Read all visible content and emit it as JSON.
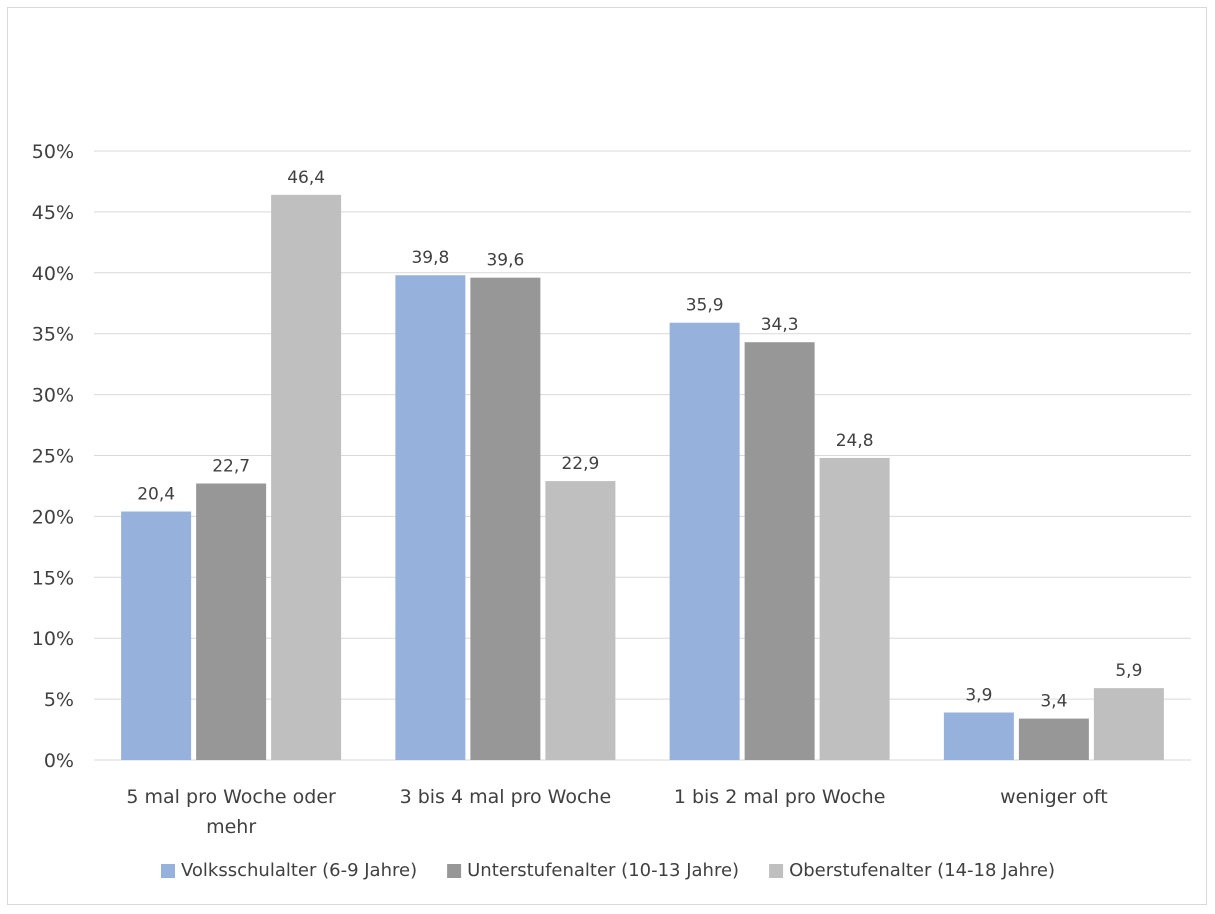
{
  "chart_data": {
    "type": "bar",
    "categories": [
      [
        "5 mal pro Woche oder",
        "mehr"
      ],
      [
        "3 bis 4 mal pro Woche"
      ],
      [
        "1 bis 2 mal pro Woche"
      ],
      [
        "weniger oft"
      ]
    ],
    "series": [
      {
        "name": "Volksschulalter (6-9 Jahre)",
        "color": "#95b1dc",
        "values": [
          20.4,
          39.8,
          35.9,
          3.9
        ],
        "labels": [
          "20,4",
          "39,8",
          "35,9",
          "3,9"
        ]
      },
      {
        "name": "Unterstufenalter (10-13 Jahre)",
        "color": "#979797",
        "values": [
          22.7,
          39.6,
          34.3,
          3.4
        ],
        "labels": [
          "22,7",
          "39,6",
          "34,3",
          "3,4"
        ]
      },
      {
        "name": "Oberstufenalter (14-18 Jahre)",
        "color": "#bfbfbf",
        "values": [
          46.4,
          22.9,
          24.8,
          5.9
        ],
        "labels": [
          "46,4",
          "22,9",
          "24,8",
          "5,9"
        ]
      }
    ],
    "ylim": [
      0,
      50
    ],
    "yticks": [
      "0%",
      "5%",
      "10%",
      "15%",
      "20%",
      "25%",
      "30%",
      "35%",
      "40%",
      "45%",
      "50%"
    ],
    "grid": true,
    "legend_position": "bottom",
    "gridline_color": "#d9d9d9"
  }
}
